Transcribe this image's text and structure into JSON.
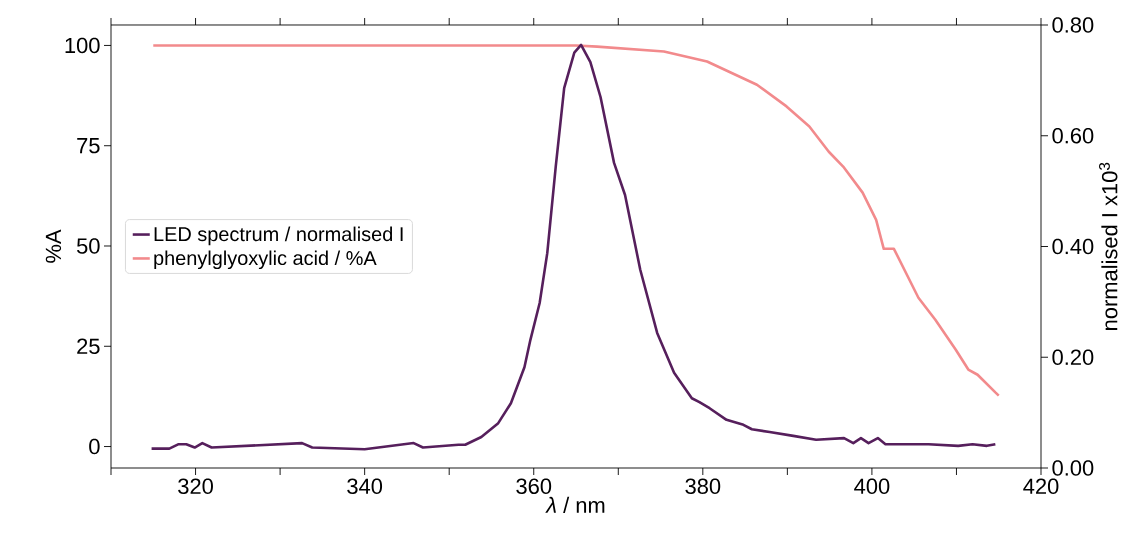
{
  "chart_data": {
    "type": "line",
    "xlabel": "*λ* / nm",
    "ylabel": "%A",
    "y2label": "normalised I x10$^{3}$",
    "xlim": [
      310,
      420
    ],
    "ylim": [
      -5.35,
      105.1
    ],
    "y2lim": [
      0,
      0.8
    ],
    "xticks": [
      {
        "value": 310,
        "label": null
      },
      320,
      {
        "value": 330,
        "label": null
      },
      340,
      {
        "value": 350,
        "label": null
      },
      360,
      {
        "value": 370,
        "label": null
      },
      380,
      {
        "value": 390,
        "label": null
      },
      400,
      {
        "value": 410,
        "label": null
      },
      420
    ],
    "yticks": [
      0,
      25,
      50,
      75,
      100
    ],
    "y2ticks": [
      {
        "value": 0,
        "label": "0.00"
      },
      {
        "value": 0.2,
        "label": "0.20"
      },
      {
        "value": 0.4,
        "label": "0.40"
      },
      {
        "value": 0.6,
        "label": "0.60"
      },
      {
        "value": 0.8,
        "label": "0.80"
      }
    ],
    "legend": "left",
    "series": [
      {
        "name": "LED spectrum / normalised I",
        "color": "#561f5c",
        "axis": "y2",
        "x": [
          314.8,
          316.9,
          318.0,
          318.9,
          319.9,
          320.8,
          321.9,
          332.6,
          333.8,
          340.0,
          345.8,
          346.9,
          351.1,
          351.9,
          353.8,
          355.8,
          357.3,
          358.9,
          359.6,
          360.7,
          361.6,
          362.6,
          363.6,
          364.8,
          365.6,
          366.7,
          367.9,
          369.5,
          370.8,
          372.6,
          374.6,
          376.6,
          378.7,
          379.6,
          380.8,
          382.8,
          384.8,
          385.8,
          387.9,
          390.7,
          393.4,
          396.7,
          397.8,
          398.7,
          399.6,
          400.7,
          401.6,
          406.7,
          410.2,
          411.9,
          413.6,
          414.6
        ],
        "values": [
          0.035,
          0.035,
          0.043,
          0.043,
          0.037,
          0.045,
          0.037,
          0.045,
          0.037,
          0.034,
          0.045,
          0.037,
          0.042,
          0.042,
          0.056,
          0.081,
          0.117,
          0.182,
          0.231,
          0.298,
          0.388,
          0.544,
          0.686,
          0.75,
          0.764,
          0.733,
          0.67,
          0.551,
          0.493,
          0.358,
          0.244,
          0.172,
          0.126,
          0.119,
          0.108,
          0.087,
          0.078,
          0.07,
          0.065,
          0.058,
          0.051,
          0.054,
          0.045,
          0.054,
          0.045,
          0.054,
          0.043,
          0.043,
          0.04,
          0.043,
          0.04,
          0.043
        ]
      },
      {
        "name": "phenylglyoxylic acid / %A",
        "color": "#f28a8c",
        "x": [
          315,
          330,
          345,
          360,
          365,
          367.5,
          375.4,
          380.5,
          386.4,
          389.9,
          392.6,
          394.9,
          396.6,
          398.9,
          400.5,
          401.4,
          402.6,
          405.5,
          407.5,
          409.9,
          411.4,
          412.5,
          414.6,
          415
        ],
        "values": [
          100,
          100,
          100,
          100,
          100,
          99.7,
          98.5,
          96.0,
          90.2,
          84.8,
          79.8,
          73.5,
          69.8,
          63.3,
          56.5,
          49.3,
          49.3,
          37.1,
          31.6,
          24.2,
          19.2,
          17.9,
          13.5,
          12.7
        ]
      }
    ]
  }
}
